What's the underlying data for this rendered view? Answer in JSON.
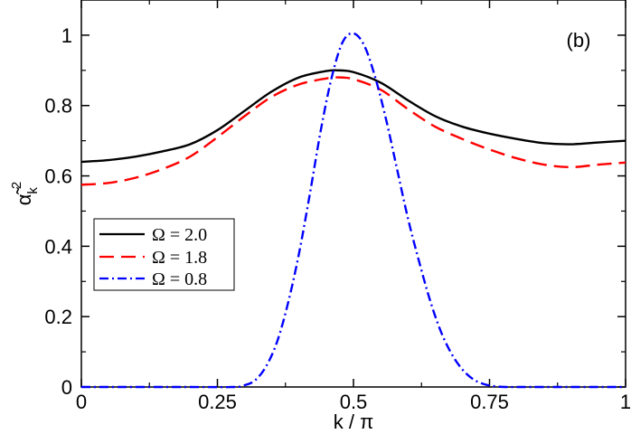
{
  "chart_data": {
    "type": "line",
    "panel_label": "(b)",
    "xlabel": "k / π",
    "ylabel": "α̃k²",
    "ylabel_base": "α̃",
    "ylabel_sub": "k",
    "ylabel_sup": "2",
    "xlim": [
      0,
      1
    ],
    "ylim": [
      0,
      1.1
    ],
    "xticks": [
      0,
      0.25,
      0.5,
      0.75,
      1
    ],
    "xtick_labels": [
      "0",
      "0.25",
      "0.5",
      "0.75",
      "1"
    ],
    "yticks": [
      0,
      0.2,
      0.4,
      0.6,
      0.8,
      1.0
    ],
    "ytick_labels": [
      "0",
      "0.2",
      "0.4",
      "0.6",
      "0.8",
      "1"
    ],
    "grid": false,
    "legend_position": "left-middle",
    "series": [
      {
        "name": "Ω = 2.0",
        "color": "#000000",
        "dash": "solid",
        "x": [
          0,
          0.05,
          0.1,
          0.15,
          0.2,
          0.25,
          0.3,
          0.35,
          0.4,
          0.45,
          0.47,
          0.5,
          0.55,
          0.6,
          0.65,
          0.7,
          0.75,
          0.8,
          0.85,
          0.9,
          0.95,
          1.0
        ],
        "y": [
          0.64,
          0.645,
          0.655,
          0.67,
          0.69,
          0.73,
          0.785,
          0.84,
          0.88,
          0.898,
          0.9,
          0.895,
          0.865,
          0.815,
          0.77,
          0.74,
          0.72,
          0.705,
          0.693,
          0.69,
          0.695,
          0.7
        ]
      },
      {
        "name": "Ω = 1.8",
        "color": "#ff0000",
        "dash": "dashed",
        "x": [
          0,
          0.05,
          0.1,
          0.15,
          0.2,
          0.25,
          0.3,
          0.35,
          0.4,
          0.45,
          0.47,
          0.5,
          0.55,
          0.6,
          0.65,
          0.7,
          0.75,
          0.8,
          0.85,
          0.9,
          0.95,
          1.0
        ],
        "y": [
          0.575,
          0.58,
          0.595,
          0.62,
          0.655,
          0.71,
          0.77,
          0.825,
          0.86,
          0.877,
          0.88,
          0.875,
          0.845,
          0.79,
          0.74,
          0.705,
          0.675,
          0.65,
          0.632,
          0.625,
          0.632,
          0.638
        ]
      },
      {
        "name": "Ω = 0.8",
        "color": "#0000ff",
        "dash": "dashdot",
        "x": [
          0,
          0.2,
          0.28,
          0.3,
          0.32,
          0.34,
          0.36,
          0.38,
          0.4,
          0.42,
          0.44,
          0.46,
          0.48,
          0.5,
          0.52,
          0.54,
          0.56,
          0.58,
          0.6,
          0.62,
          0.64,
          0.66,
          0.68,
          0.7,
          0.72,
          0.74,
          0.76,
          0.78,
          0.8,
          0.85,
          1.0
        ],
        "y": [
          0,
          0,
          0,
          0.005,
          0.02,
          0.06,
          0.13,
          0.24,
          0.38,
          0.55,
          0.73,
          0.88,
          0.98,
          1.005,
          0.97,
          0.88,
          0.76,
          0.62,
          0.48,
          0.36,
          0.25,
          0.16,
          0.095,
          0.05,
          0.022,
          0.008,
          0.002,
          0,
          0,
          0,
          0
        ]
      }
    ]
  }
}
